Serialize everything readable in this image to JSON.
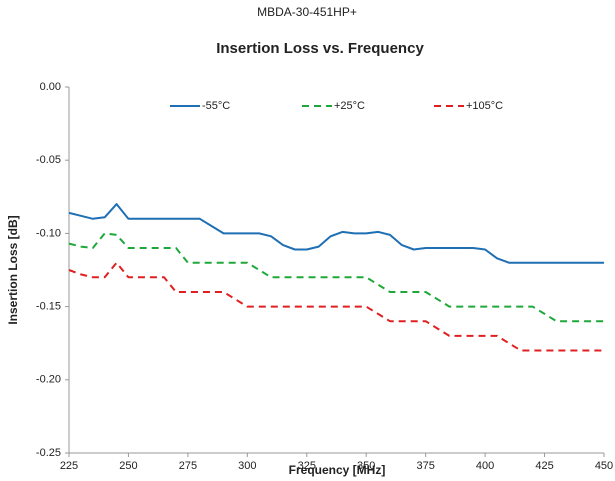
{
  "chart_data": {
    "type": "line",
    "supertitle": "MBDA-30-451HP+",
    "title": "Insertion Loss vs. Frequency",
    "x_label": "Frequency [MHz]",
    "y_label": "Insertion Loss [dB]",
    "x": [
      225,
      230,
      235,
      240,
      245,
      250,
      255,
      260,
      265,
      270,
      275,
      280,
      285,
      290,
      295,
      300,
      305,
      310,
      315,
      320,
      325,
      330,
      335,
      340,
      345,
      350,
      355,
      360,
      365,
      370,
      375,
      380,
      385,
      390,
      395,
      400,
      405,
      410,
      415,
      420,
      425,
      430,
      435,
      440,
      445,
      450
    ],
    "series": [
      {
        "name": "-55°C",
        "color": "#1f6fb4",
        "dash": "solid",
        "values": [
          -0.086,
          -0.088,
          -0.09,
          -0.089,
          -0.08,
          -0.09,
          -0.09,
          -0.09,
          -0.09,
          -0.09,
          -0.09,
          -0.09,
          -0.095,
          -0.1,
          -0.1,
          -0.1,
          -0.1,
          -0.102,
          -0.108,
          -0.111,
          -0.111,
          -0.109,
          -0.102,
          -0.099,
          -0.1,
          -0.1,
          -0.099,
          -0.101,
          -0.108,
          -0.111,
          -0.11,
          -0.11,
          -0.11,
          -0.11,
          -0.11,
          -0.111,
          -0.117,
          -0.12,
          -0.12,
          -0.12,
          -0.12,
          -0.12,
          -0.12,
          -0.12,
          -0.12,
          -0.12
        ]
      },
      {
        "name": "+25°C",
        "color": "#1fa83a",
        "dash": "dashed",
        "values": [
          -0.107,
          -0.109,
          -0.11,
          -0.1,
          -0.101,
          -0.11,
          -0.11,
          -0.11,
          -0.11,
          -0.11,
          -0.12,
          -0.12,
          -0.12,
          -0.12,
          -0.12,
          -0.12,
          -0.125,
          -0.13,
          -0.13,
          -0.13,
          -0.13,
          -0.13,
          -0.13,
          -0.13,
          -0.13,
          -0.13,
          -0.135,
          -0.14,
          -0.14,
          -0.14,
          -0.14,
          -0.145,
          -0.15,
          -0.15,
          -0.15,
          -0.15,
          -0.15,
          -0.15,
          -0.15,
          -0.15,
          -0.155,
          -0.16,
          -0.16,
          -0.16,
          -0.16,
          -0.16
        ]
      },
      {
        "name": "+105°C",
        "color": "#e02020",
        "dash": "dashed",
        "values": [
          -0.125,
          -0.128,
          -0.13,
          -0.13,
          -0.12,
          -0.13,
          -0.13,
          -0.13,
          -0.13,
          -0.14,
          -0.14,
          -0.14,
          -0.14,
          -0.14,
          -0.145,
          -0.15,
          -0.15,
          -0.15,
          -0.15,
          -0.15,
          -0.15,
          -0.15,
          -0.15,
          -0.15,
          -0.15,
          -0.15,
          -0.155,
          -0.16,
          -0.16,
          -0.16,
          -0.16,
          -0.165,
          -0.17,
          -0.17,
          -0.17,
          -0.17,
          -0.17,
          -0.175,
          -0.18,
          -0.18,
          -0.18,
          -0.18,
          -0.18,
          -0.18,
          -0.18,
          -0.18
        ]
      }
    ],
    "xlim": [
      225,
      450
    ],
    "xticks": [
      225,
      250,
      275,
      300,
      325,
      350,
      375,
      400,
      425,
      450
    ],
    "ylim": [
      -0.25,
      0
    ],
    "yticks": [
      {
        "value": -0.25,
        "label": "-0.25"
      },
      {
        "value": -0.2,
        "label": "-0.20"
      },
      {
        "value": -0.15,
        "label": "-0.15"
      },
      {
        "value": -0.1,
        "label": "-0.10"
      },
      {
        "value": -0.05,
        "label": "-0.05"
      },
      {
        "value": 0,
        "label": "0.00"
      }
    ],
    "grid": false,
    "legend": "top"
  }
}
